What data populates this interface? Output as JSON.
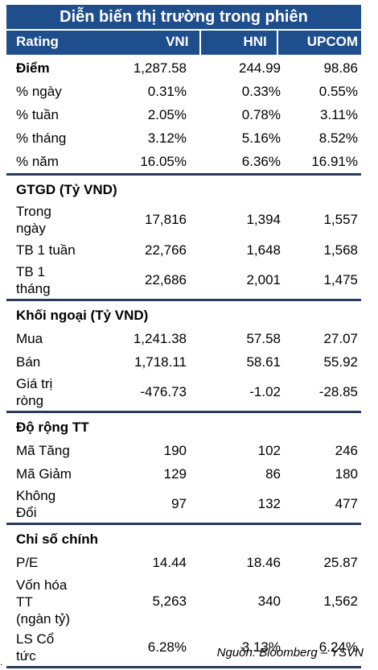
{
  "title": "Diễn biến thị trường trong phiên",
  "header": {
    "rating": "Rating",
    "vni": "VNI",
    "hni": "HNI",
    "upcom": "UPCOM"
  },
  "market": {
    "rows": [
      {
        "label": "Điểm",
        "vni": "1,287.58",
        "hni": "244.99",
        "upcom": "98.86"
      },
      {
        "label": "% ngày",
        "vni": "0.31%",
        "hni": "0.33%",
        "upcom": "0.55%"
      },
      {
        "label": "% tuần",
        "vni": "2.05%",
        "hni": "0.78%",
        "upcom": "3.11%"
      },
      {
        "label": "% tháng",
        "vni": "3.12%",
        "hni": "5.16%",
        "upcom": "8.52%"
      },
      {
        "label": "% năm",
        "vni": "16.05%",
        "hni": "6.36%",
        "upcom": "16.91%"
      }
    ]
  },
  "gtgd": {
    "title": "GTGD (Tỷ VND)",
    "rows": [
      {
        "label": "Trong\nngày",
        "vni": "17,816",
        "hni": "1,394",
        "upcom": "1,557"
      },
      {
        "label": "TB 1 tuần",
        "vni": "22,766",
        "hni": "1,648",
        "upcom": "1,568"
      },
      {
        "label": "TB 1\ntháng",
        "vni": "22,686",
        "hni": "2,001",
        "upcom": "1,475"
      }
    ]
  },
  "foreign": {
    "title": "Khối ngoại (Tỷ VND)",
    "rows": [
      {
        "label": "Mua",
        "vni": "1,241.38",
        "hni": "57.58",
        "upcom": "27.07"
      },
      {
        "label": "Bán",
        "vni": "1,718.11",
        "hni": "58.61",
        "upcom": "55.92"
      },
      {
        "label": "Giá trị\nròng",
        "vni": "-476.73",
        "hni": "-1.02",
        "upcom": "-28.85"
      }
    ]
  },
  "breadth": {
    "title": "Độ rộng TT",
    "rows": [
      {
        "label": "Mã Tăng",
        "vni": "190",
        "hni": "102",
        "upcom": "246"
      },
      {
        "label": "Mã Giảm",
        "vni": "129",
        "hni": "86",
        "upcom": "180"
      },
      {
        "label": "Không\nĐổi",
        "vni": "97",
        "hni": "132",
        "upcom": "477"
      }
    ]
  },
  "indicators": {
    "title": "Chỉ số chính",
    "rows": [
      {
        "label": "P/E",
        "vni": "14.44",
        "hni": "18.46",
        "upcom": "25.87"
      },
      {
        "label": "Vốn hóa\nTT\n(ngàn tỷ)",
        "vni": "5,263",
        "hni": "340",
        "upcom": "1,562"
      },
      {
        "label": "LS Cổ\ntức",
        "vni": "6.28%",
        "hni": "3.13%",
        "upcom": "6.24%"
      }
    ]
  },
  "source": "Nguồn: Bloomberg – YSVN",
  "footnote": "."
}
